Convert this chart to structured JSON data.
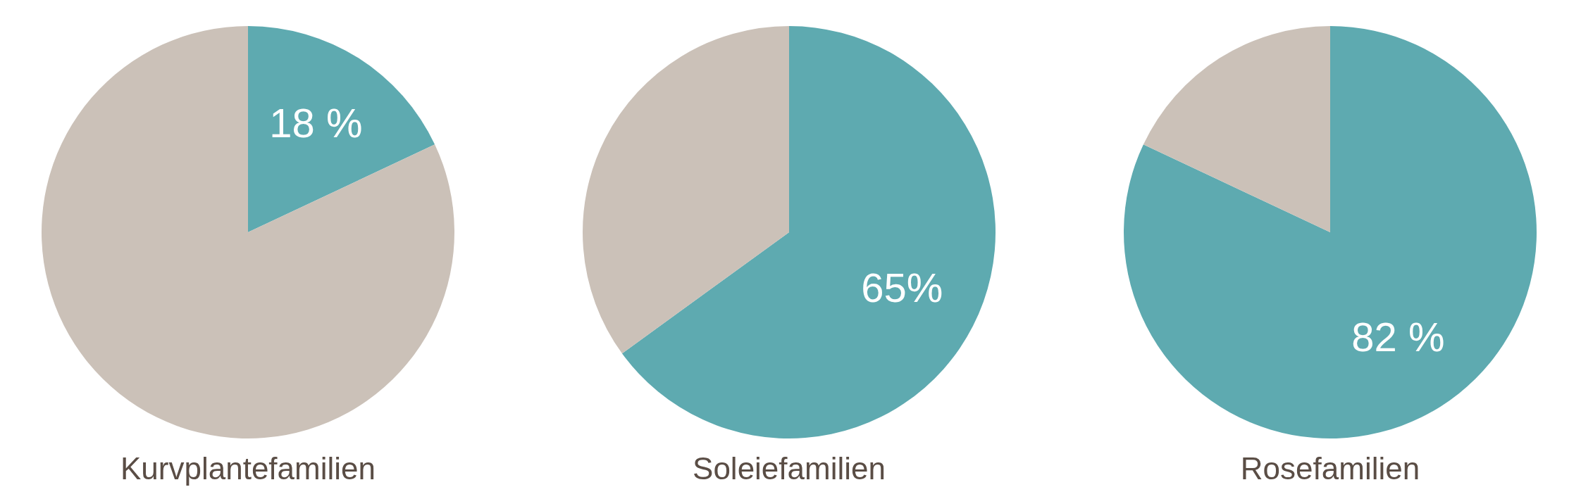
{
  "chart_data": [
    {
      "type": "pie",
      "title": "Kurvplantefamilien",
      "categories": [
        null,
        null
      ],
      "values": [
        18,
        82
      ],
      "colors": [
        "#5eaab0",
        "#cbc1b8"
      ],
      "value_labels": [
        "18 %",
        null
      ]
    },
    {
      "type": "pie",
      "title": "Soleiefamilien",
      "categories": [
        null,
        null
      ],
      "values": [
        65,
        35
      ],
      "colors": [
        "#5eaab0",
        "#cbc1b8"
      ],
      "value_labels": [
        "65%",
        null
      ]
    },
    {
      "type": "pie",
      "title": "Rosefamilien",
      "categories": [
        null,
        null
      ],
      "values": [
        82,
        18
      ],
      "colors": [
        "#5eaab0",
        "#cbc1b8"
      ],
      "value_labels": [
        "82 %",
        null
      ]
    }
  ]
}
